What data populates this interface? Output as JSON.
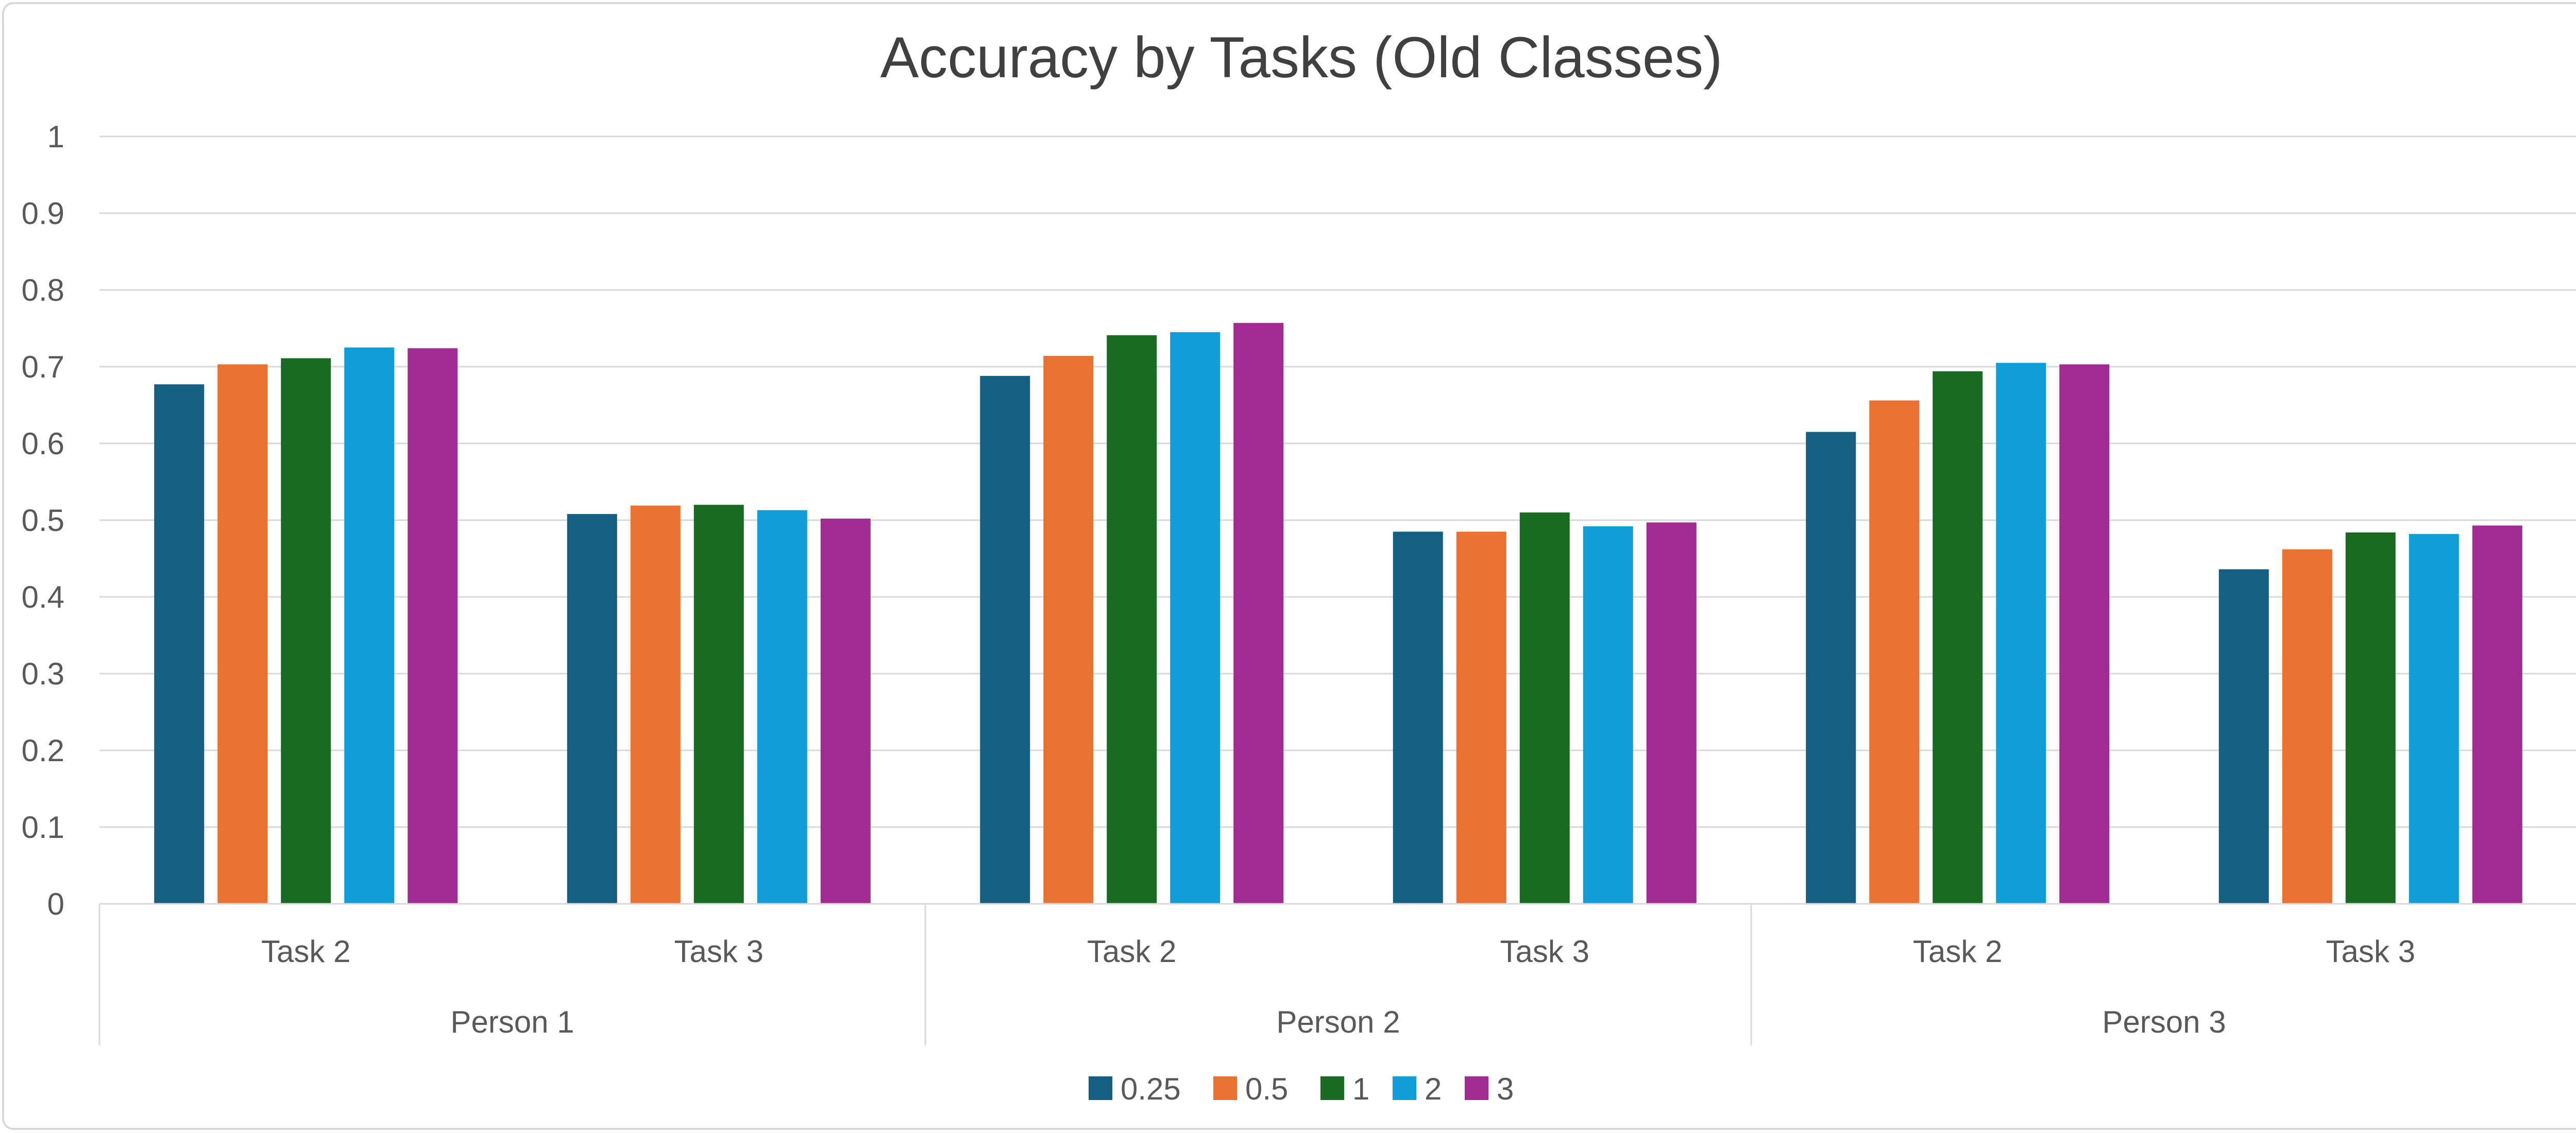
{
  "chart_data": {
    "type": "bar",
    "title": "Accuracy by Tasks (Old Classes)",
    "xlabel": "",
    "ylabel": "",
    "ylim": [
      0,
      1
    ],
    "yticks": [
      "0",
      "0.1",
      "0.2",
      "0.3",
      "0.4",
      "0.5",
      "0.6",
      "0.7",
      "0.8",
      "0.9",
      "1"
    ],
    "groups": [
      "Person 1",
      "Person 2",
      "Person 3"
    ],
    "categories": [
      "Task 2",
      "Task 3",
      "Task 2",
      "Task 3",
      "Task 2",
      "Task 3"
    ],
    "series": [
      {
        "name": "0.25",
        "color": "#156082",
        "values": [
          0.677,
          0.508,
          0.688,
          0.485,
          0.615,
          0.436
        ]
      },
      {
        "name": "0.5",
        "color": "#E97132",
        "values": [
          0.703,
          0.519,
          0.714,
          0.485,
          0.656,
          0.462
        ]
      },
      {
        "name": "1",
        "color": "#196B24",
        "values": [
          0.711,
          0.52,
          0.741,
          0.51,
          0.694,
          0.484
        ]
      },
      {
        "name": "2",
        "color": "#0F9ED5",
        "values": [
          0.725,
          0.513,
          0.745,
          0.492,
          0.705,
          0.482
        ]
      },
      {
        "name": "3",
        "color": "#A02B93",
        "values": [
          0.724,
          0.502,
          0.757,
          0.497,
          0.703,
          0.493
        ]
      }
    ],
    "grid": true,
    "legend": "bottom"
  }
}
